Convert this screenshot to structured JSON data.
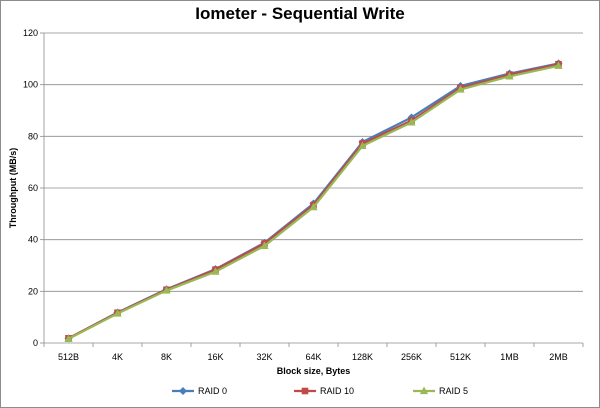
{
  "chart_data": {
    "type": "line",
    "title": "Iometer - Sequential Write",
    "xlabel": "Block size, Bytes",
    "ylabel": "Throughput  (MB/s)",
    "ylim": [
      0,
      120
    ],
    "yticks": [
      0,
      20,
      40,
      60,
      80,
      100,
      120
    ],
    "grid": "horizontal",
    "legend_position": "bottom",
    "categories": [
      "512B",
      "4K",
      "8K",
      "16K",
      "32K",
      "64K",
      "128K",
      "256K",
      "512K",
      "1MB",
      "2MB"
    ],
    "series": [
      {
        "name": "RAID 0",
        "color": "#4a7ebb",
        "marker": "diamond",
        "values": [
          1.8,
          11.8,
          20.8,
          28.6,
          38.8,
          54.0,
          77.8,
          87.3,
          99.5,
          104.3,
          108.2
        ]
      },
      {
        "name": "RAID 10",
        "color": "#be4b48",
        "marker": "square",
        "values": [
          1.8,
          11.7,
          20.6,
          28.4,
          38.5,
          53.4,
          77.2,
          86.1,
          98.8,
          103.9,
          107.9
        ]
      },
      {
        "name": "RAID 5",
        "color": "#98b954",
        "marker": "triangle",
        "values": [
          1.6,
          11.4,
          20.3,
          27.6,
          37.6,
          52.6,
          76.3,
          85.4,
          98.1,
          103.2,
          107.3
        ]
      }
    ]
  }
}
